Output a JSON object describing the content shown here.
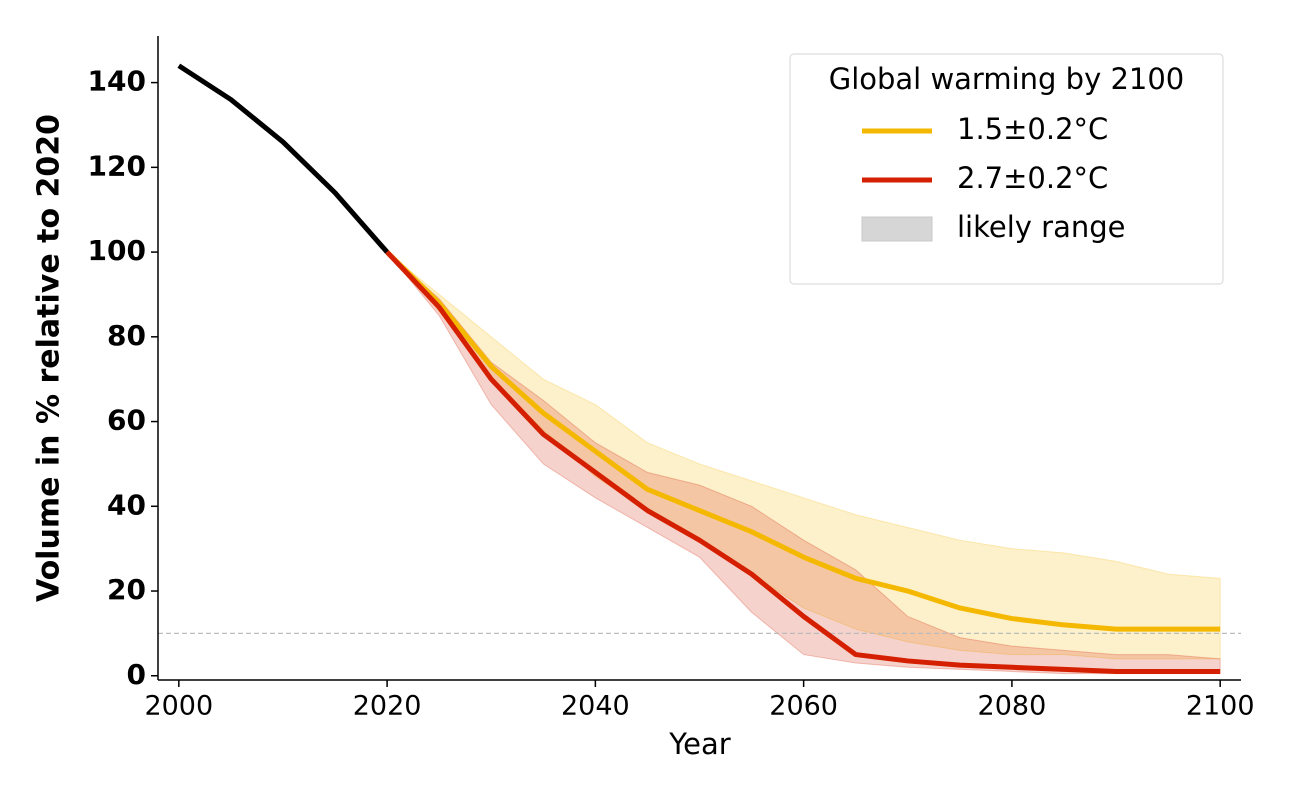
{
  "chart_data": {
    "type": "line",
    "xlabel": "Year",
    "ylabel": "Volume in % relative to 2020",
    "x": [
      2000,
      2005,
      2010,
      2015,
      2020,
      2025,
      2030,
      2035,
      2040,
      2045,
      2050,
      2055,
      2060,
      2065,
      2070,
      2075,
      2080,
      2085,
      2090,
      2095,
      2100
    ],
    "series": [
      {
        "color": "#000000",
        "values": [
          144,
          136,
          126,
          114,
          100,
          null,
          null,
          null,
          null,
          null,
          null,
          null,
          null,
          null,
          null,
          null,
          null,
          null,
          null,
          null,
          null
        ]
      },
      {
        "name": "1.5±0.2°C",
        "color": "#f5b800",
        "values": [
          null,
          null,
          null,
          null,
          100,
          88,
          73,
          62,
          53,
          44,
          39,
          34,
          28,
          23,
          20,
          16,
          13.5,
          12,
          11,
          11,
          11
        ],
        "band_lower": [
          null,
          null,
          null,
          null,
          100,
          86,
          70,
          58,
          47,
          39,
          32,
          24,
          16,
          11,
          8,
          6,
          5,
          5,
          4,
          4,
          4
        ],
        "band_upper": [
          null,
          null,
          null,
          null,
          100,
          90,
          80,
          70,
          64,
          55,
          50,
          46,
          42,
          38,
          35,
          32,
          30,
          29,
          27,
          24,
          23
        ]
      },
      {
        "name": "2.7±0.2°C",
        "color": "#d42000",
        "values": [
          null,
          null,
          null,
          null,
          100,
          87,
          70,
          57,
          48,
          39,
          32,
          24,
          14,
          5,
          3.5,
          2.5,
          2,
          1.5,
          1,
          1,
          1
        ],
        "band_lower": [
          null,
          null,
          null,
          null,
          100,
          85,
          64,
          50,
          42,
          35,
          28,
          15,
          5,
          3,
          2,
          1.5,
          1,
          0.5,
          0.5,
          0.5,
          0.5
        ],
        "band_upper": [
          null,
          null,
          null,
          null,
          100,
          89,
          74,
          65,
          55,
          48,
          45,
          40,
          32,
          25,
          14,
          9,
          7,
          6,
          5,
          5,
          4
        ]
      }
    ],
    "band_label": "likely range",
    "band_legend_color": "#d6d6d6",
    "hline": 10,
    "legend_title": "Global warming by 2100",
    "legend": "upper right",
    "xlim": [
      1998,
      2102
    ],
    "ylim": [
      -1,
      151
    ],
    "xticks": [
      2000,
      2020,
      2040,
      2060,
      2080,
      2100
    ],
    "yticks": [
      0,
      20,
      40,
      60,
      80,
      100,
      120,
      140
    ]
  }
}
